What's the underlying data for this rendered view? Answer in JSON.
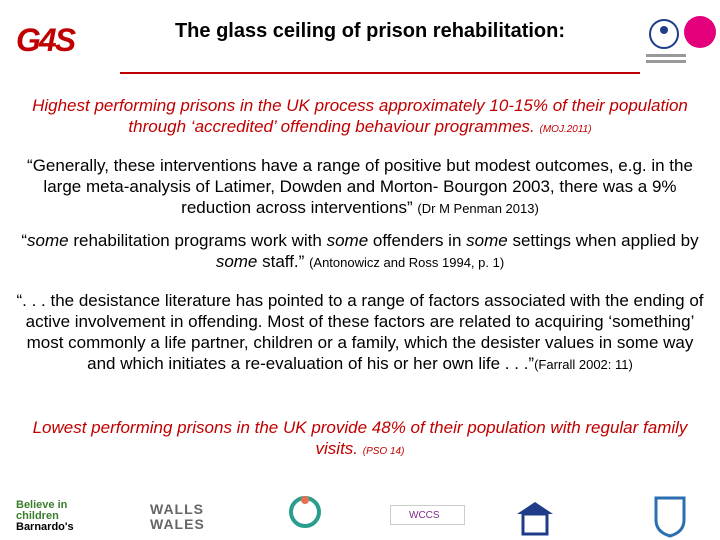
{
  "header": {
    "logo": "G4S",
    "title": "The glass ceiling of prison rehabilitation:"
  },
  "paragraphs": [
    [
      "Highest performing prisons in the UK process approximately 10-15% of their population through ‘accredited’ offending behaviour programmes.",
      "(MOJ.2011)"
    ],
    [
      "“Generally, these interventions have a range of positive but modest outcomes, e.g. in the large meta-analysis of Latimer, Dowden and Morton- Bourgon 2003, there was a 9% reduction across interventions”",
      "(Dr M Penman 2013)"
    ],
    [
      "“",
      "some",
      " rehabilitation programs work with ",
      "some",
      " offenders in ",
      "some",
      " settings when applied by ",
      "some",
      " staff.”",
      "(Antonowicz and Ross 1994, p. 1)"
    ],
    [
      "“. . . the desistance literature has pointed to a range of factors associated with the ending of active involvement in offending. Most of these factors are related to acquiring ‘something’ most commonly a life partner, children or a family, which the desister values in some way and which initiates a re-evaluation of his or her own life . . .”",
      "(Farrall 2002: 11)"
    ],
    [
      "Lowest performing prisons in the UK provide 48% of their population with regular family visits.",
      "(PSO 14)"
    ]
  ],
  "footer_logos": [
    "Believe in",
    "children",
    "Barnardo's",
    "WALLS",
    "WALES",
    "WCCS"
  ]
}
